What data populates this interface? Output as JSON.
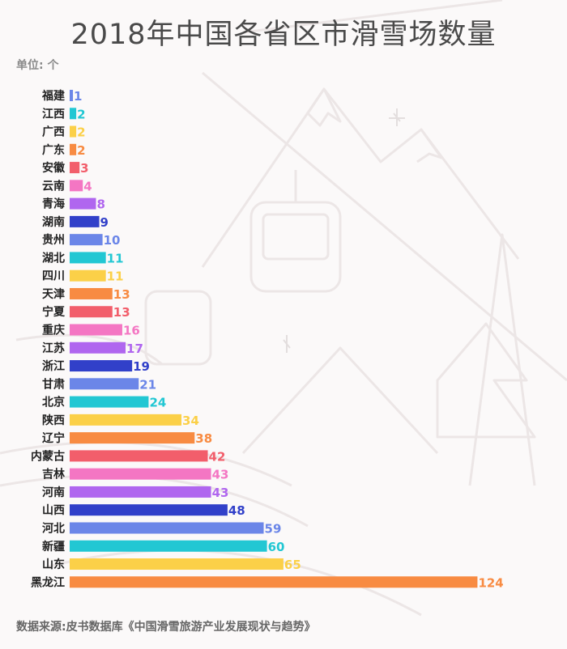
{
  "title": "2018年中国各省区市滑雪场数量",
  "unit_label": "单位: 个",
  "source": "数据来源:皮书数据库《中国滑雪旅游产业发展现状与趋势》",
  "chart_data": {
    "type": "bar",
    "orientation": "horizontal",
    "title": "2018年中国各省区市滑雪场数量",
    "categories": [
      "福建",
      "江西",
      "广西",
      "广东",
      "安徽",
      "云南",
      "青海",
      "湖南",
      "贵州",
      "湖北",
      "四川",
      "天津",
      "宁夏",
      "重庆",
      "江苏",
      "浙江",
      "甘肃",
      "北京",
      "陕西",
      "辽宁",
      "内蒙古",
      "吉林",
      "河南",
      "山西",
      "河北",
      "新疆",
      "山东",
      "黑龙江"
    ],
    "values": [
      1,
      2,
      2,
      2,
      3,
      4,
      8,
      9,
      10,
      11,
      11,
      13,
      13,
      16,
      17,
      19,
      21,
      24,
      34,
      38,
      42,
      43,
      43,
      48,
      59,
      60,
      65,
      124
    ],
    "colors": [
      "#6b86e8",
      "#22c7d3",
      "#fbd048",
      "#f88b42",
      "#f25e6b",
      "#f476c3",
      "#b066ef",
      "#3140c9",
      "#6b86e8",
      "#22c7d3",
      "#fbd048",
      "#f88b42",
      "#f25e6b",
      "#f476c3",
      "#b066ef",
      "#3140c9",
      "#6b86e8",
      "#22c7d3",
      "#fbd048",
      "#f88b42",
      "#f25e6b",
      "#f476c3",
      "#b066ef",
      "#3140c9",
      "#6b86e8",
      "#22c7d3",
      "#fbd048",
      "#f88b42"
    ],
    "grid": false,
    "xlim": [
      0,
      124
    ]
  }
}
